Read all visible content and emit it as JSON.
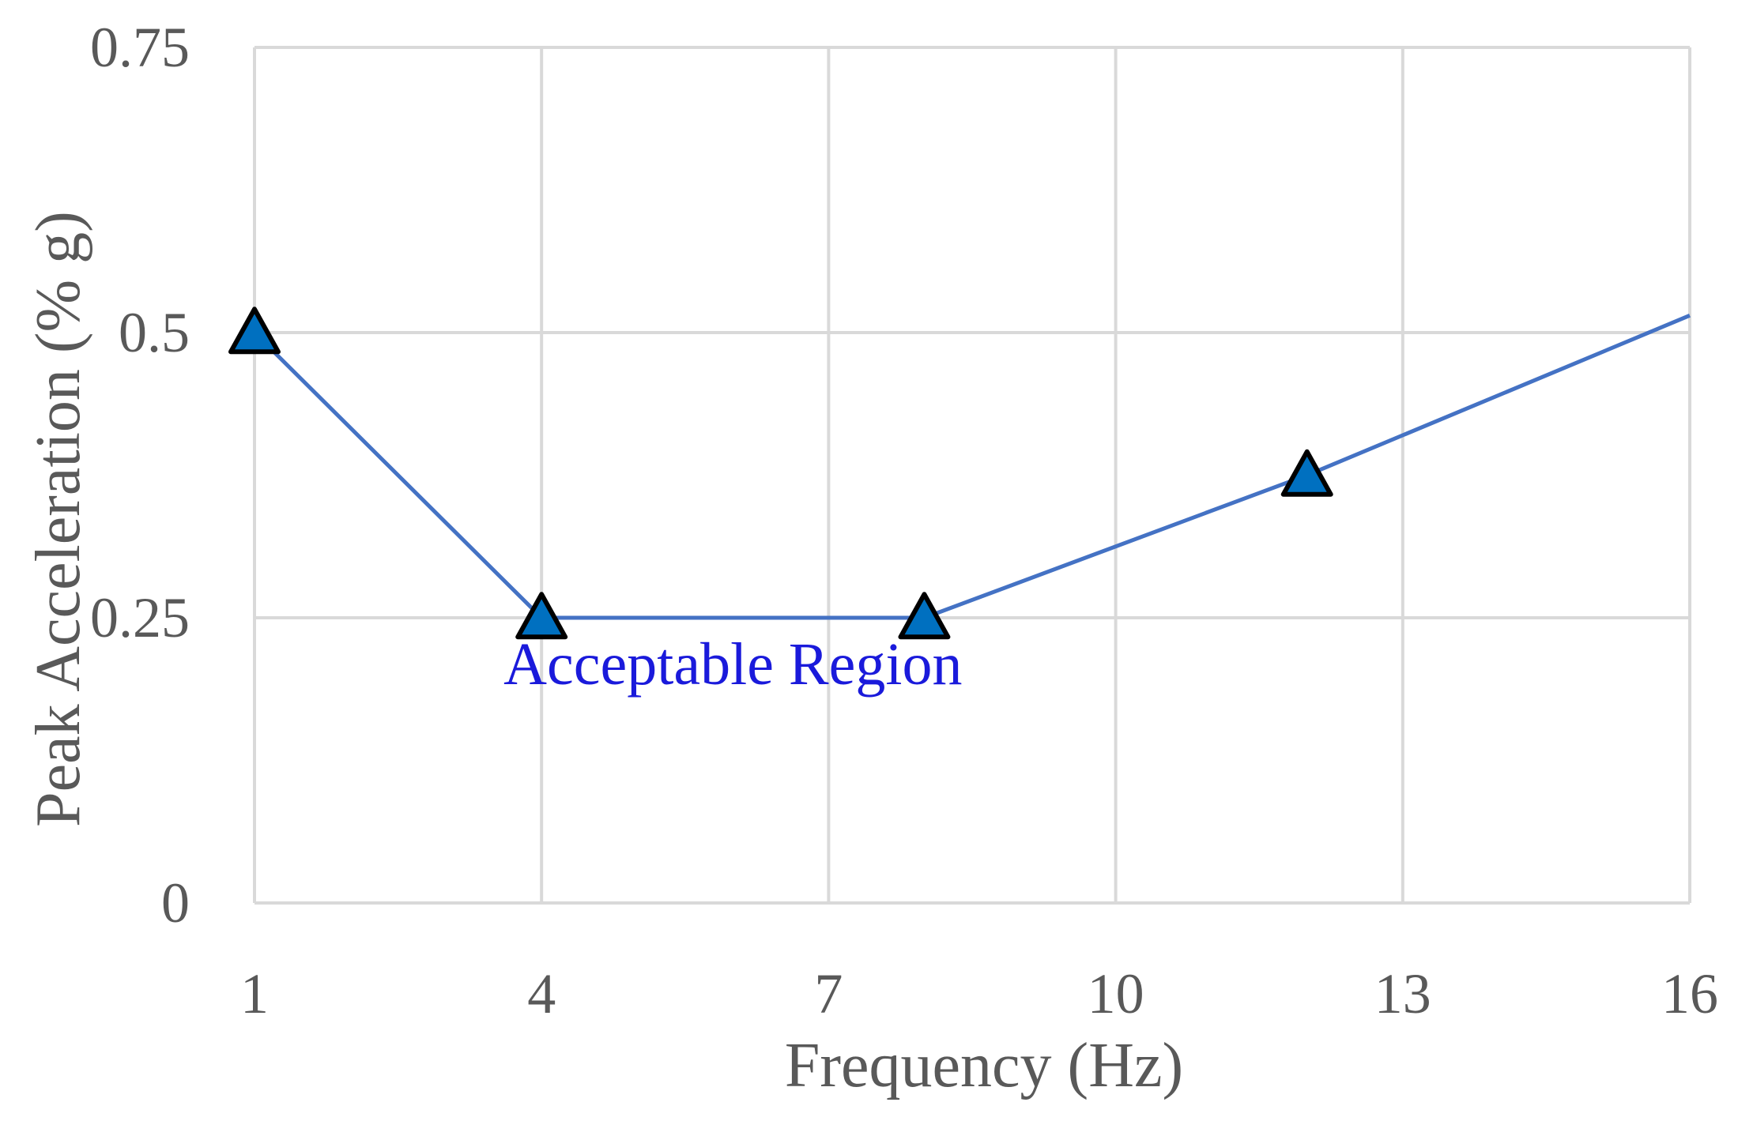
{
  "chart_data": {
    "type": "line",
    "xlabel": "Frequency (Hz)",
    "ylabel": "Peak Acceleration (% g)",
    "xlim": [
      1,
      16
    ],
    "ylim": [
      0,
      0.75
    ],
    "x_ticks": [
      "1",
      "4",
      "7",
      "10",
      "13",
      "16"
    ],
    "y_ticks": [
      "0",
      "0.25",
      "0.5",
      "0.75"
    ],
    "grid": true,
    "series": [
      {
        "color": "#4472c4",
        "marker_color": "#0070c0",
        "marker": "triangle",
        "points": [
          {
            "x": 1,
            "y": 0.5,
            "marker": true
          },
          {
            "x": 4,
            "y": 0.25,
            "marker": true
          },
          {
            "x": 8,
            "y": 0.25,
            "marker": true
          },
          {
            "x": 12,
            "y": 0.375,
            "marker": true
          },
          {
            "x": 16,
            "y": 0.515,
            "marker": false
          }
        ]
      }
    ],
    "annotations": [
      {
        "text": "Acceptable Region",
        "x": 6,
        "y": 0.21,
        "color": "#1a1adb"
      }
    ]
  }
}
